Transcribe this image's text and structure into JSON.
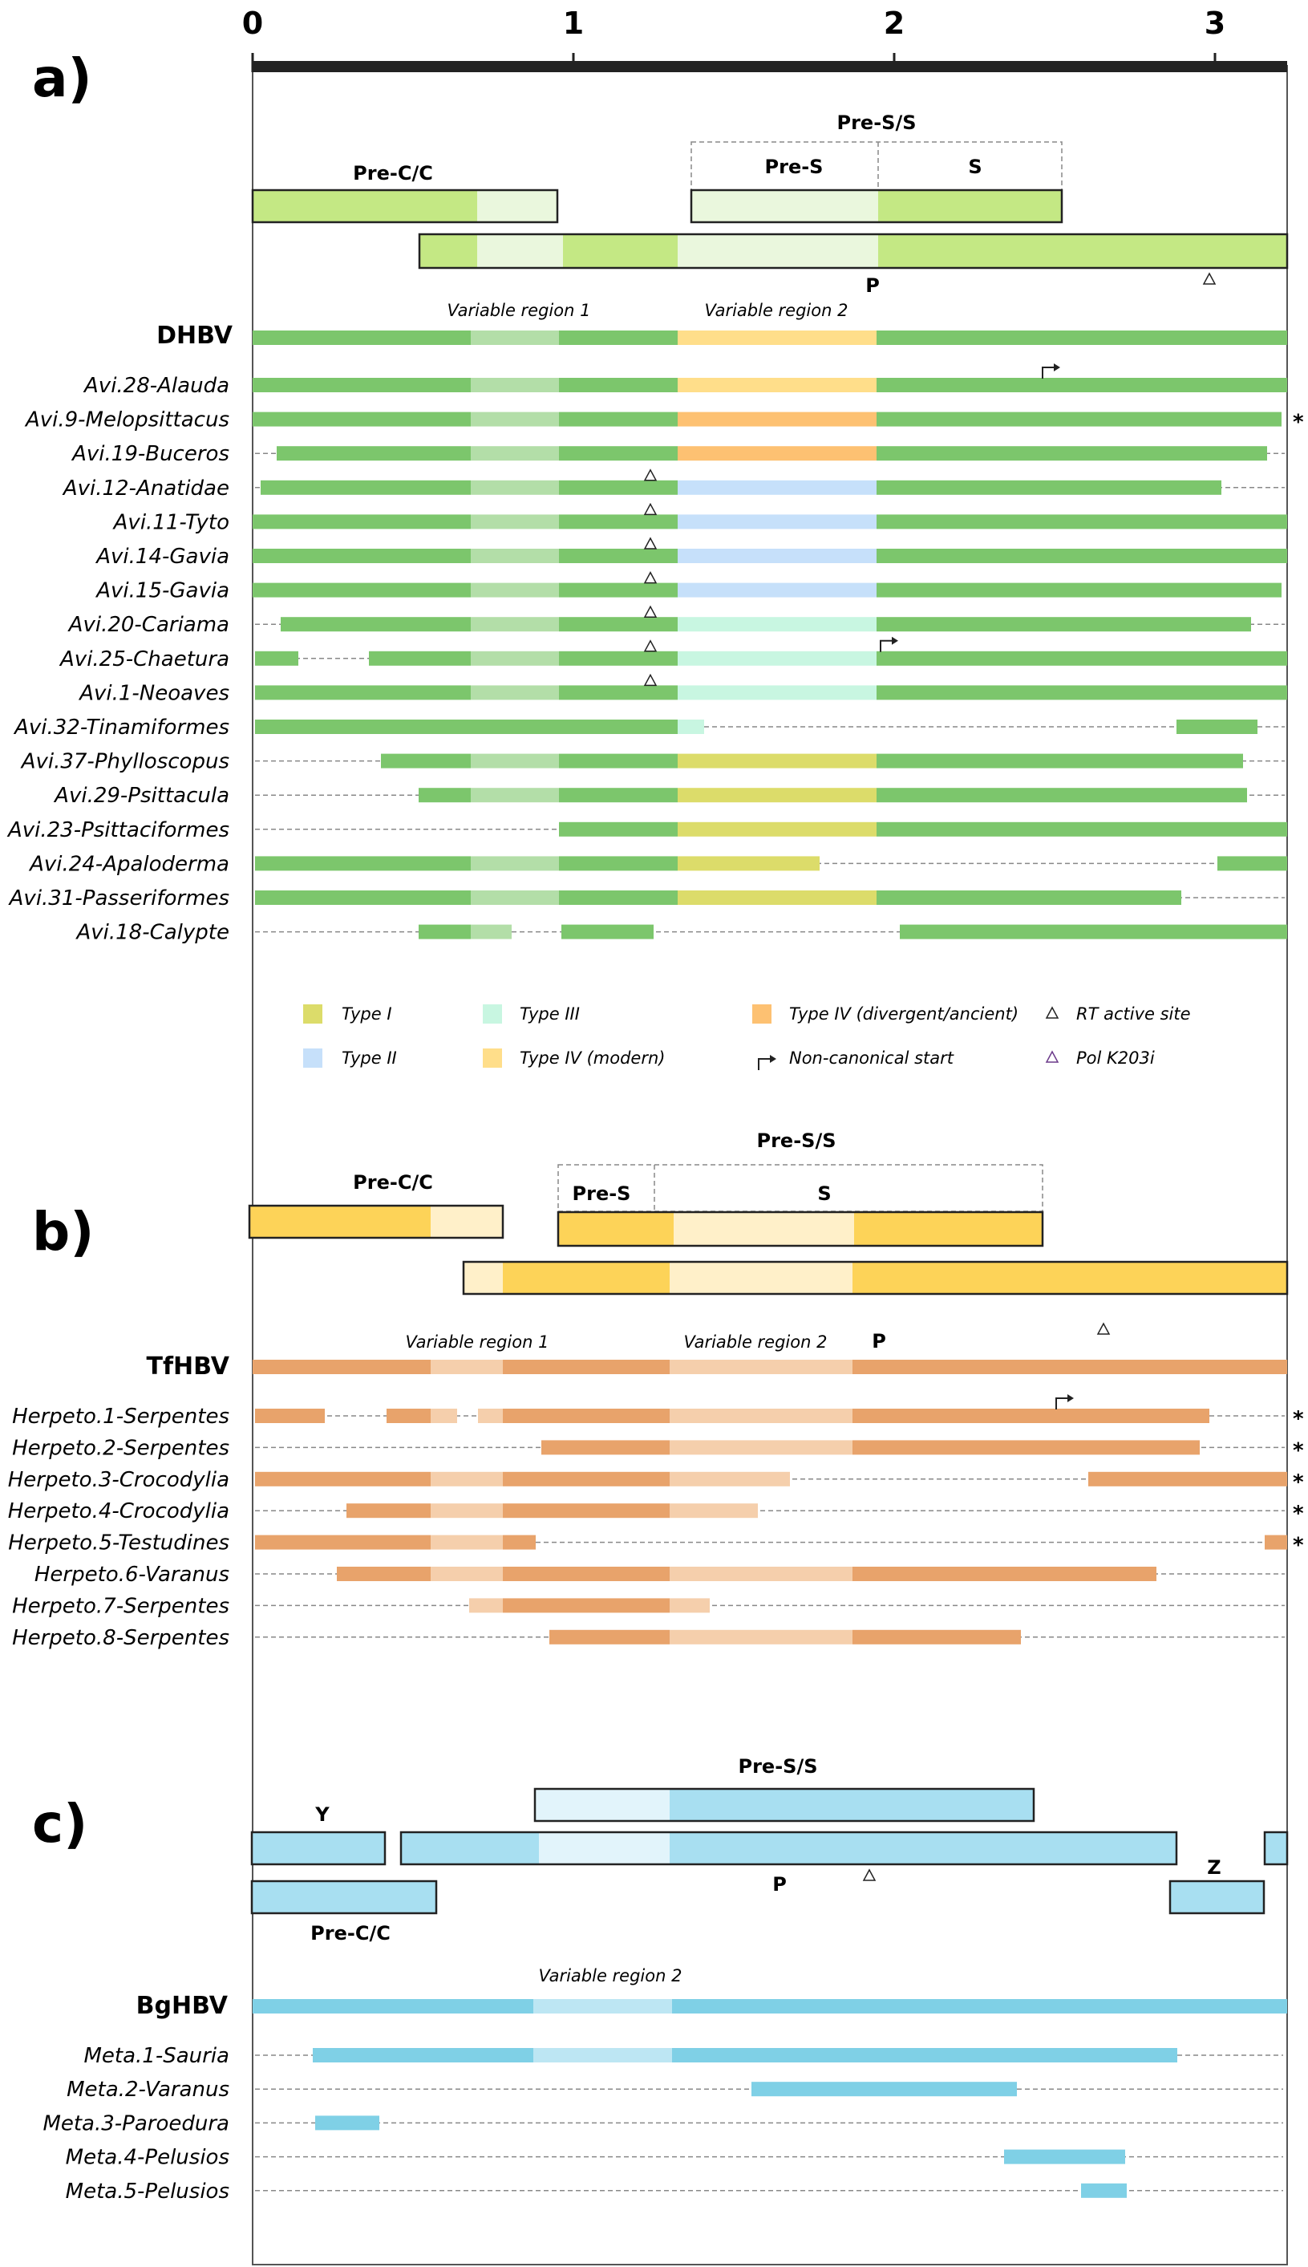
{
  "axis": {
    "ticks": [
      "0",
      "1",
      "2",
      "3"
    ]
  },
  "panel_a": {
    "letter": "a)",
    "genes": {
      "precc": "Pre-C/C",
      "pres_s": "Pre-S/S",
      "pres": "Pre-S",
      "s": "S",
      "p": "P"
    },
    "variable_region_1": "Variable region 1",
    "variable_region_2": "Variable region 2",
    "reference": "DHBV",
    "rows": [
      "Avi.28-Alauda",
      "Avi.9-Melopsittacus",
      "Avi.19-Buceros",
      "Avi.12-Anatidae",
      "Avi.11-Tyto",
      "Avi.14-Gavia",
      "Avi.15-Gavia",
      "Avi.20-Cariama",
      "Avi.25-Chaetura",
      "Avi.1-Neoaves",
      "Avi.32-Tinamiformes",
      "Avi.37-Phylloscopus",
      "Avi.29-Psittacula",
      "Avi.23-Psittaciformes",
      "Avi.24-Apaloderma",
      "Avi.31-Passeriformes",
      "Avi.18-Calypte"
    ],
    "asterisks": [
      "*"
    ],
    "legend": {
      "type1": "Type I",
      "type2": "Type II",
      "type3": "Type III",
      "type4_modern": "Type  IV (modern)",
      "type4_div": "Type  IV (divergent/ancient)",
      "nc_start": "Non-canonical start",
      "rt": "RT active site",
      "pol": "Pol K203i"
    }
  },
  "panel_b": {
    "letter": "b)",
    "genes": {
      "precc": "Pre-C/C",
      "pres_s": "Pre-S/S",
      "pres": "Pre-S",
      "s": "S",
      "p": "P"
    },
    "variable_region_1": "Variable region 1",
    "variable_region_2": "Variable region 2",
    "reference": "TfHBV",
    "rows": [
      "Herpeto.1-Serpentes",
      "Herpeto.2-Serpentes",
      "Herpeto.3-Crocodylia",
      "Herpeto.4-Crocodylia",
      "Herpeto.5-Testudines",
      "Herpeto.6-Varanus",
      "Herpeto.7-Serpentes",
      "Herpeto.8-Serpentes"
    ],
    "asterisks": [
      "*"
    ]
  },
  "panel_c": {
    "letter": "c)",
    "genes": {
      "y": "Y",
      "pres_s": "Pre-S/S",
      "p": "P",
      "z": "Z",
      "precc": "Pre-C/C"
    },
    "variable_region_2": "Variable region 2",
    "reference": "BgHBV",
    "rows": [
      "Meta.1-Sauria",
      "Meta.2-Varanus",
      "Meta.3-Paroedura",
      "Meta.4-Pelusios",
      "Meta.5-Pelusios"
    ]
  },
  "colors": {
    "avian_green": "#7cc66c",
    "avian_light": "#b3dea8",
    "type1": "#dcdc6a",
    "type2": "#c6e0fa",
    "type3": "#c8f6e1",
    "type4_modern": "#ffde8a",
    "type4_div": "#fdc172",
    "herpeto": "#e8a36b",
    "herpeto_light": "#f5cfac",
    "meta": "#7fd0e6",
    "meta_light": "#bde6f3",
    "gene_green": "#c4e884",
    "gene_green_light": "#eaf7dd",
    "gene_yellow": "#fdd358",
    "gene_yellow_light": "#fff0c9",
    "gene_blue": "#a8dff1",
    "gene_blue_light": "#e2f4fb"
  }
}
